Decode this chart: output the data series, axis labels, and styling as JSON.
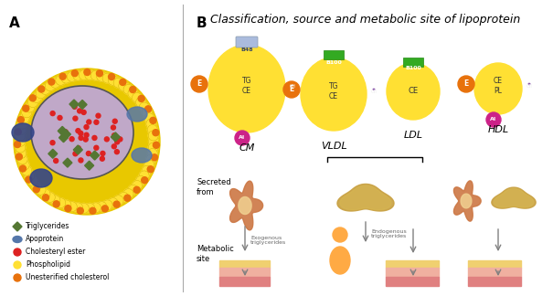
{
  "title": "Classification, source and metabolic site of lipoprotein",
  "label_A": "A",
  "label_B": "B",
  "bg_color": "#ffffff",
  "legend_items": [
    {
      "label": "Triglycerides",
      "color": "#5a8a3c"
    },
    {
      "label": "Apoprotein",
      "color": "#6699cc"
    },
    {
      "label": "Cholesteryl ester",
      "color": "#cc2222"
    },
    {
      "label": "Phospholipid",
      "color": "#ffdd44"
    },
    {
      "label": "Unesterified cholesterol",
      "color": "#dd8833"
    }
  ],
  "lipoprotein_labels": [
    "CM",
    "VLDL",
    "LDL",
    "HDL"
  ],
  "secreted_from": "Secreted\nfrom",
  "metabolic_site": "Metabolic\nsite",
  "exogenous": "Exogenous\ntriglycerides",
  "endogenous": "Endogenous\ntriglycerides",
  "yellow": "#FFE033",
  "yellow_dark": "#E8C800",
  "orange": "#E8720C",
  "purple": "#8855AA",
  "magenta": "#CC2288",
  "green_box": "#33AA22",
  "blue_box": "#AABBDD",
  "red_sphere": "#DD2222",
  "blue_apoprotein": "#5577AA",
  "dark_blue": "#334488",
  "green_tg": "#557733",
  "skin_color": "#FFAA44",
  "tissue_yellow": "#F0C060",
  "tissue_pink": "#F0A0A0",
  "tissue_red": "#E06060",
  "intestine_color": "#CC7744",
  "liver_color": "#C8A040"
}
